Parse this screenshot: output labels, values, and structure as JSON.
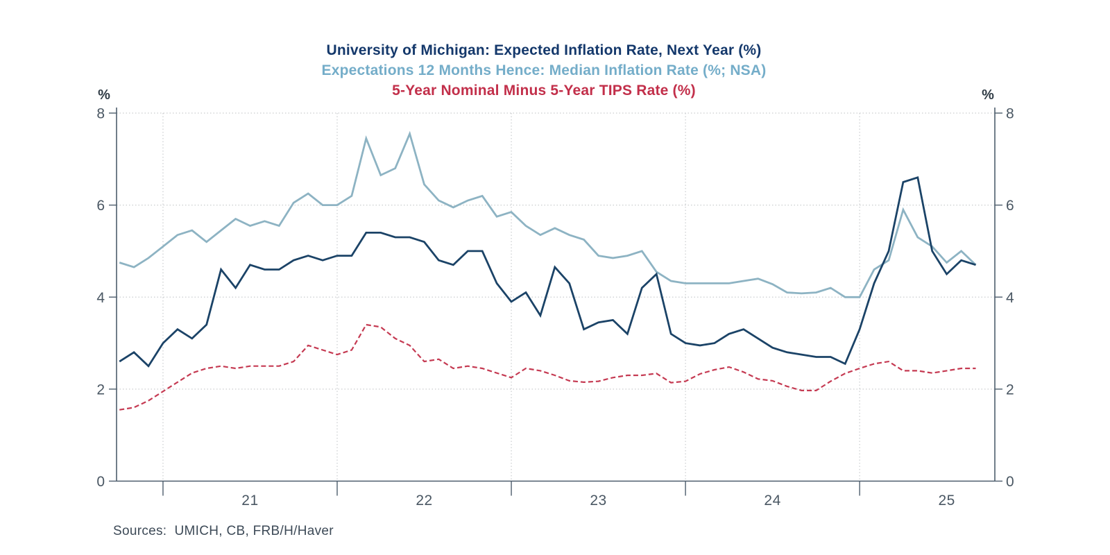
{
  "titles": [
    {
      "text": "University of Michigan: Expected Inflation Rate, Next Year (%)",
      "color": "#14386b"
    },
    {
      "text": "Expectations 12 Months Hence: Median Inflation Rate (%; NSA)",
      "color": "#74adc9"
    },
    {
      "text": "5-Year Nominal Minus 5-Year TIPS Rate (%)",
      "color": "#c22f4a"
    }
  ],
  "axes": {
    "left_unit_label": "%",
    "right_unit_label": "%",
    "y_ticks": [
      8,
      6,
      4,
      2,
      0
    ],
    "ylim": [
      0,
      8
    ],
    "x_year_labels": [
      "21",
      "22",
      "23",
      "24",
      "25"
    ],
    "grid_style": "dotted"
  },
  "source_note": "Sources:  UMICH, CB, FRB/H/Haver",
  "chart_data": {
    "type": "line",
    "frequency": "monthly",
    "x_start": "2020-10",
    "x_end": "2025-09",
    "x_year_tick_months": [
      "2021-01",
      "2022-01",
      "2023-01",
      "2024-01",
      "2025-01"
    ],
    "ylim": [
      0,
      8
    ],
    "series": [
      {
        "name": "University of Michigan: Expected Inflation Rate, Next Year (%)",
        "color": "#1b4367",
        "style": "solid",
        "values": [
          2.6,
          2.8,
          2.5,
          3.0,
          3.3,
          3.1,
          3.4,
          4.6,
          4.2,
          4.7,
          4.6,
          4.6,
          4.8,
          4.9,
          4.8,
          4.9,
          4.9,
          5.4,
          5.4,
          5.3,
          5.3,
          5.2,
          4.8,
          4.7,
          5.0,
          5.0,
          4.3,
          3.9,
          4.1,
          3.6,
          4.65,
          4.3,
          3.3,
          3.45,
          3.5,
          3.2,
          4.2,
          4.5,
          3.2,
          3.0,
          2.95,
          3.0,
          3.2,
          3.3,
          3.1,
          2.9,
          2.8,
          2.75,
          2.7,
          2.7,
          2.55,
          3.3,
          4.3,
          5.0,
          6.5,
          6.6,
          5.0,
          4.5,
          4.8,
          4.7
        ]
      },
      {
        "name": "Expectations 12 Months Hence: Median Inflation Rate (%; NSA)",
        "color": "#8db3c3",
        "style": "solid",
        "values": [
          4.75,
          4.65,
          4.85,
          5.1,
          5.35,
          5.45,
          5.2,
          5.45,
          5.7,
          5.55,
          5.65,
          5.55,
          6.05,
          6.25,
          6.0,
          6.0,
          6.2,
          7.45,
          6.65,
          6.8,
          7.55,
          6.45,
          6.1,
          5.95,
          6.1,
          6.2,
          5.75,
          5.85,
          5.55,
          5.35,
          5.5,
          5.35,
          5.25,
          4.9,
          4.85,
          4.9,
          5.0,
          4.55,
          4.35,
          4.3,
          4.3,
          4.3,
          4.3,
          4.35,
          4.4,
          4.28,
          4.1,
          4.08,
          4.1,
          4.2,
          4.0,
          4.0,
          4.6,
          4.8,
          5.9,
          5.3,
          5.1,
          4.75,
          5.0,
          4.7
        ]
      },
      {
        "name": "5-Year Nominal Minus 5-Year TIPS Rate (%)",
        "color": "#c53a52",
        "style": "dashed",
        "values": [
          1.55,
          1.6,
          1.75,
          1.95,
          2.15,
          2.35,
          2.45,
          2.5,
          2.45,
          2.5,
          2.5,
          2.5,
          2.6,
          2.95,
          2.85,
          2.75,
          2.85,
          3.4,
          3.35,
          3.1,
          2.95,
          2.6,
          2.65,
          2.45,
          2.5,
          2.45,
          2.35,
          2.25,
          2.45,
          2.4,
          2.3,
          2.18,
          2.15,
          2.17,
          2.25,
          2.3,
          2.3,
          2.34,
          2.14,
          2.17,
          2.33,
          2.42,
          2.48,
          2.37,
          2.22,
          2.18,
          2.06,
          1.97,
          1.97,
          2.17,
          2.34,
          2.45,
          2.55,
          2.6,
          2.4,
          2.4,
          2.35,
          2.4,
          2.45,
          2.45
        ]
      }
    ]
  }
}
